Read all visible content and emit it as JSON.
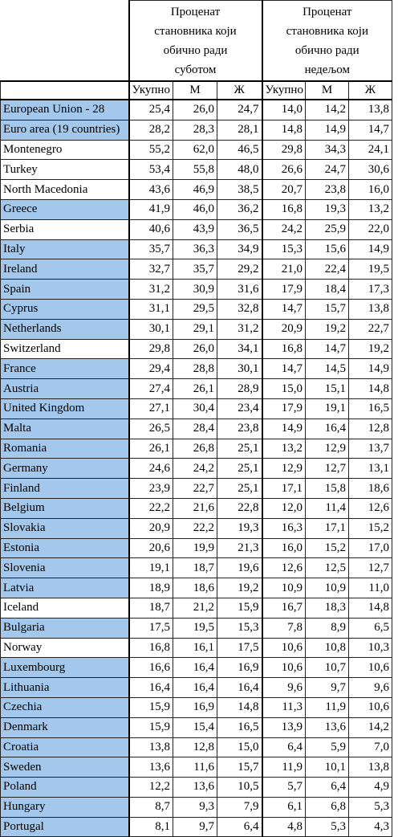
{
  "table": {
    "groups": [
      {
        "lines": [
          "Проценат",
          "становника који",
          "обично ради",
          "суботом"
        ]
      },
      {
        "lines": [
          "Проценат",
          "становника који",
          "обично ради",
          "недељом"
        ]
      }
    ],
    "subheaders": [
      "Укупно",
      "М",
      "Ж",
      "Укупно",
      "М",
      "Ж"
    ],
    "rows": [
      {
        "name": "European Union - 28",
        "highlight": true,
        "cells": [
          "25,4",
          "26,0",
          "24,7",
          "14,0",
          "14,2",
          "13,8"
        ]
      },
      {
        "name": "Euro area (19 countries)",
        "highlight": true,
        "cells": [
          "28,2",
          "28,3",
          "28,1",
          "14,8",
          "14,9",
          "14,7"
        ]
      },
      {
        "name": "Montenegro",
        "highlight": false,
        "cells": [
          "55,2",
          "62,0",
          "46,5",
          "29,8",
          "34,3",
          "24,1"
        ]
      },
      {
        "name": "Turkey",
        "highlight": false,
        "cells": [
          "53,4",
          "55,8",
          "48,0",
          "26,6",
          "24,7",
          "30,6"
        ]
      },
      {
        "name": "North Macedonia",
        "highlight": false,
        "cells": [
          "43,6",
          "46,9",
          "38,5",
          "20,7",
          "23,8",
          "16,0"
        ]
      },
      {
        "name": "Greece",
        "highlight": true,
        "cells": [
          "41,9",
          "46,0",
          "36,2",
          "16,8",
          "19,3",
          "13,2"
        ]
      },
      {
        "name": "Serbia",
        "highlight": false,
        "cells": [
          "40,6",
          "43,9",
          "36,5",
          "24,2",
          "25,9",
          "22,0"
        ]
      },
      {
        "name": "Italy",
        "highlight": true,
        "cells": [
          "35,7",
          "36,3",
          "34,9",
          "15,3",
          "15,6",
          "14,9"
        ]
      },
      {
        "name": "Ireland",
        "highlight": true,
        "cells": [
          "32,7",
          "35,7",
          "29,2",
          "21,0",
          "22,4",
          "19,5"
        ]
      },
      {
        "name": "Spain",
        "highlight": true,
        "cells": [
          "31,2",
          "30,9",
          "31,6",
          "17,9",
          "18,4",
          "17,3"
        ]
      },
      {
        "name": "Cyprus",
        "highlight": true,
        "cells": [
          "31,1",
          "29,5",
          "32,8",
          "14,7",
          "15,7",
          "13,8"
        ]
      },
      {
        "name": "Netherlands",
        "highlight": true,
        "cells": [
          "30,1",
          "29,1",
          "31,2",
          "20,9",
          "19,2",
          "22,7"
        ]
      },
      {
        "name": "Switzerland",
        "highlight": false,
        "cells": [
          "29,8",
          "26,0",
          "34,1",
          "16,8",
          "14,7",
          "19,2"
        ]
      },
      {
        "name": "France",
        "highlight": true,
        "cells": [
          "29,4",
          "28,8",
          "30,1",
          "14,7",
          "14,5",
          "14,9"
        ]
      },
      {
        "name": "Austria",
        "highlight": true,
        "cells": [
          "27,4",
          "26,1",
          "28,9",
          "15,0",
          "15,1",
          "14,8"
        ]
      },
      {
        "name": "United Kingdom",
        "highlight": true,
        "cells": [
          "27,1",
          "30,4",
          "23,4",
          "17,9",
          "19,1",
          "16,5"
        ]
      },
      {
        "name": "Malta",
        "highlight": true,
        "cells": [
          "26,5",
          "28,4",
          "23,8",
          "14,9",
          "16,4",
          "12,8"
        ]
      },
      {
        "name": "Romania",
        "highlight": true,
        "cells": [
          "26,1",
          "26,8",
          "25,1",
          "13,2",
          "12,9",
          "13,7"
        ]
      },
      {
        "name": "Germany",
        "highlight": true,
        "cells": [
          "24,6",
          "24,2",
          "25,1",
          "12,9",
          "12,7",
          "13,1"
        ]
      },
      {
        "name": "Finland",
        "highlight": true,
        "cells": [
          "23,9",
          "22,7",
          "25,1",
          "17,1",
          "15,8",
          "18,6"
        ]
      },
      {
        "name": "Belgium",
        "highlight": true,
        "cells": [
          "22,2",
          "21,6",
          "22,8",
          "12,0",
          "11,4",
          "12,6"
        ]
      },
      {
        "name": "Slovakia",
        "highlight": true,
        "cells": [
          "20,9",
          "22,2",
          "19,3",
          "16,3",
          "17,1",
          "15,2"
        ]
      },
      {
        "name": "Estonia",
        "highlight": true,
        "cells": [
          "20,6",
          "19,9",
          "21,3",
          "16,0",
          "15,2",
          "17,0"
        ]
      },
      {
        "name": "Slovenia",
        "highlight": true,
        "cells": [
          "19,1",
          "18,7",
          "19,6",
          "12,6",
          "12,5",
          "12,7"
        ]
      },
      {
        "name": "Latvia",
        "highlight": true,
        "cells": [
          "18,9",
          "18,6",
          "19,2",
          "10,9",
          "10,9",
          "11,0"
        ]
      },
      {
        "name": "Iceland",
        "highlight": false,
        "cells": [
          "18,7",
          "21,2",
          "15,9",
          "16,7",
          "18,3",
          "14,8"
        ]
      },
      {
        "name": "Bulgaria",
        "highlight": true,
        "cells": [
          "17,5",
          "19,5",
          "15,3",
          "7,8",
          "8,9",
          "6,5"
        ]
      },
      {
        "name": "Norway",
        "highlight": false,
        "cells": [
          "16,8",
          "16,1",
          "17,5",
          "10,6",
          "10,8",
          "10,3"
        ]
      },
      {
        "name": "Luxembourg",
        "highlight": true,
        "cells": [
          "16,6",
          "16,4",
          "16,9",
          "10,6",
          "10,7",
          "10,6"
        ]
      },
      {
        "name": "Lithuania",
        "highlight": true,
        "cells": [
          "16,4",
          "16,4",
          "16,4",
          "9,6",
          "9,7",
          "9,6"
        ]
      },
      {
        "name": "Czechia",
        "highlight": true,
        "cells": [
          "15,9",
          "16,9",
          "14,8",
          "11,3",
          "11,9",
          "10,6"
        ]
      },
      {
        "name": "Denmark",
        "highlight": true,
        "cells": [
          "15,9",
          "15,4",
          "16,5",
          "13,9",
          "13,6",
          "14,2"
        ]
      },
      {
        "name": "Croatia",
        "highlight": true,
        "cells": [
          "13,8",
          "12,8",
          "15,0",
          "6,4",
          "5,9",
          "7,0"
        ]
      },
      {
        "name": "Sweden",
        "highlight": true,
        "cells": [
          "13,6",
          "11,6",
          "15,7",
          "11,9",
          "10,1",
          "13,8"
        ]
      },
      {
        "name": "Poland",
        "highlight": true,
        "cells": [
          "12,2",
          "13,6",
          "10,5",
          "5,7",
          "6,4",
          "4,9"
        ]
      },
      {
        "name": "Hungary",
        "highlight": true,
        "cells": [
          "8,7",
          "9,3",
          "7,9",
          "6,1",
          "6,8",
          "5,3"
        ]
      },
      {
        "name": "Portugal",
        "highlight": true,
        "cells": [
          "8,1",
          "9,7",
          "6,4",
          "4,8",
          "5,3",
          "4,3"
        ]
      }
    ]
  }
}
